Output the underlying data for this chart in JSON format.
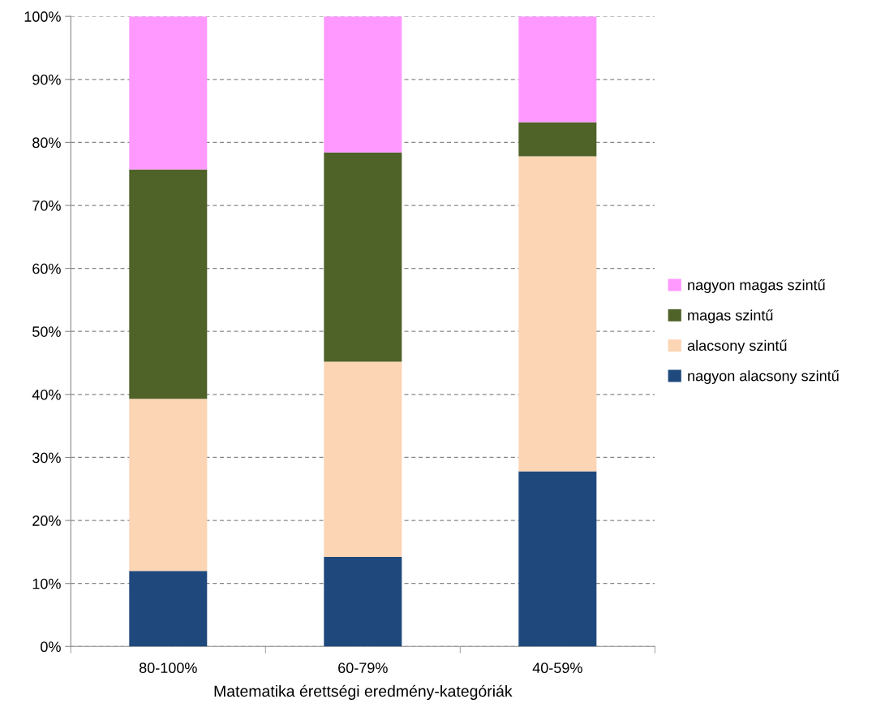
{
  "chart_data": {
    "type": "bar",
    "stacked": true,
    "xlabel": "Matematika érettségi eredmény-kategóriák",
    "categories": [
      "80-100%",
      "60-79%",
      "40-59%"
    ],
    "series": [
      {
        "name": "nagyon alacsony szintű",
        "color": "#1f497d",
        "values": [
          12.0,
          14.2,
          27.8
        ]
      },
      {
        "name": "alacsony szintű",
        "color": "#fcd5b5",
        "values": [
          27.3,
          31.0,
          50.0
        ]
      },
      {
        "name": "magas szintű",
        "color": "#4f6228",
        "values": [
          36.4,
          33.2,
          5.4
        ]
      },
      {
        "name": "nagyon magas szintű",
        "color": "#ff99ff",
        "values": [
          24.3,
          21.6,
          16.8
        ]
      }
    ],
    "ylim": [
      0,
      100
    ],
    "yticks": [
      {
        "value": 0,
        "label": "0%"
      },
      {
        "value": 10,
        "label": "10%"
      },
      {
        "value": 20,
        "label": "20%"
      },
      {
        "value": 30,
        "label": "30%"
      },
      {
        "value": 40,
        "label": "40%"
      },
      {
        "value": 50,
        "label": "50%"
      },
      {
        "value": 60,
        "label": "60%"
      },
      {
        "value": 70,
        "label": "70%"
      },
      {
        "value": 80,
        "label": "80%"
      },
      {
        "value": 90,
        "label": "90%"
      },
      {
        "value": 100,
        "label": "100%"
      }
    ],
    "grid": "y",
    "legend": "right"
  }
}
